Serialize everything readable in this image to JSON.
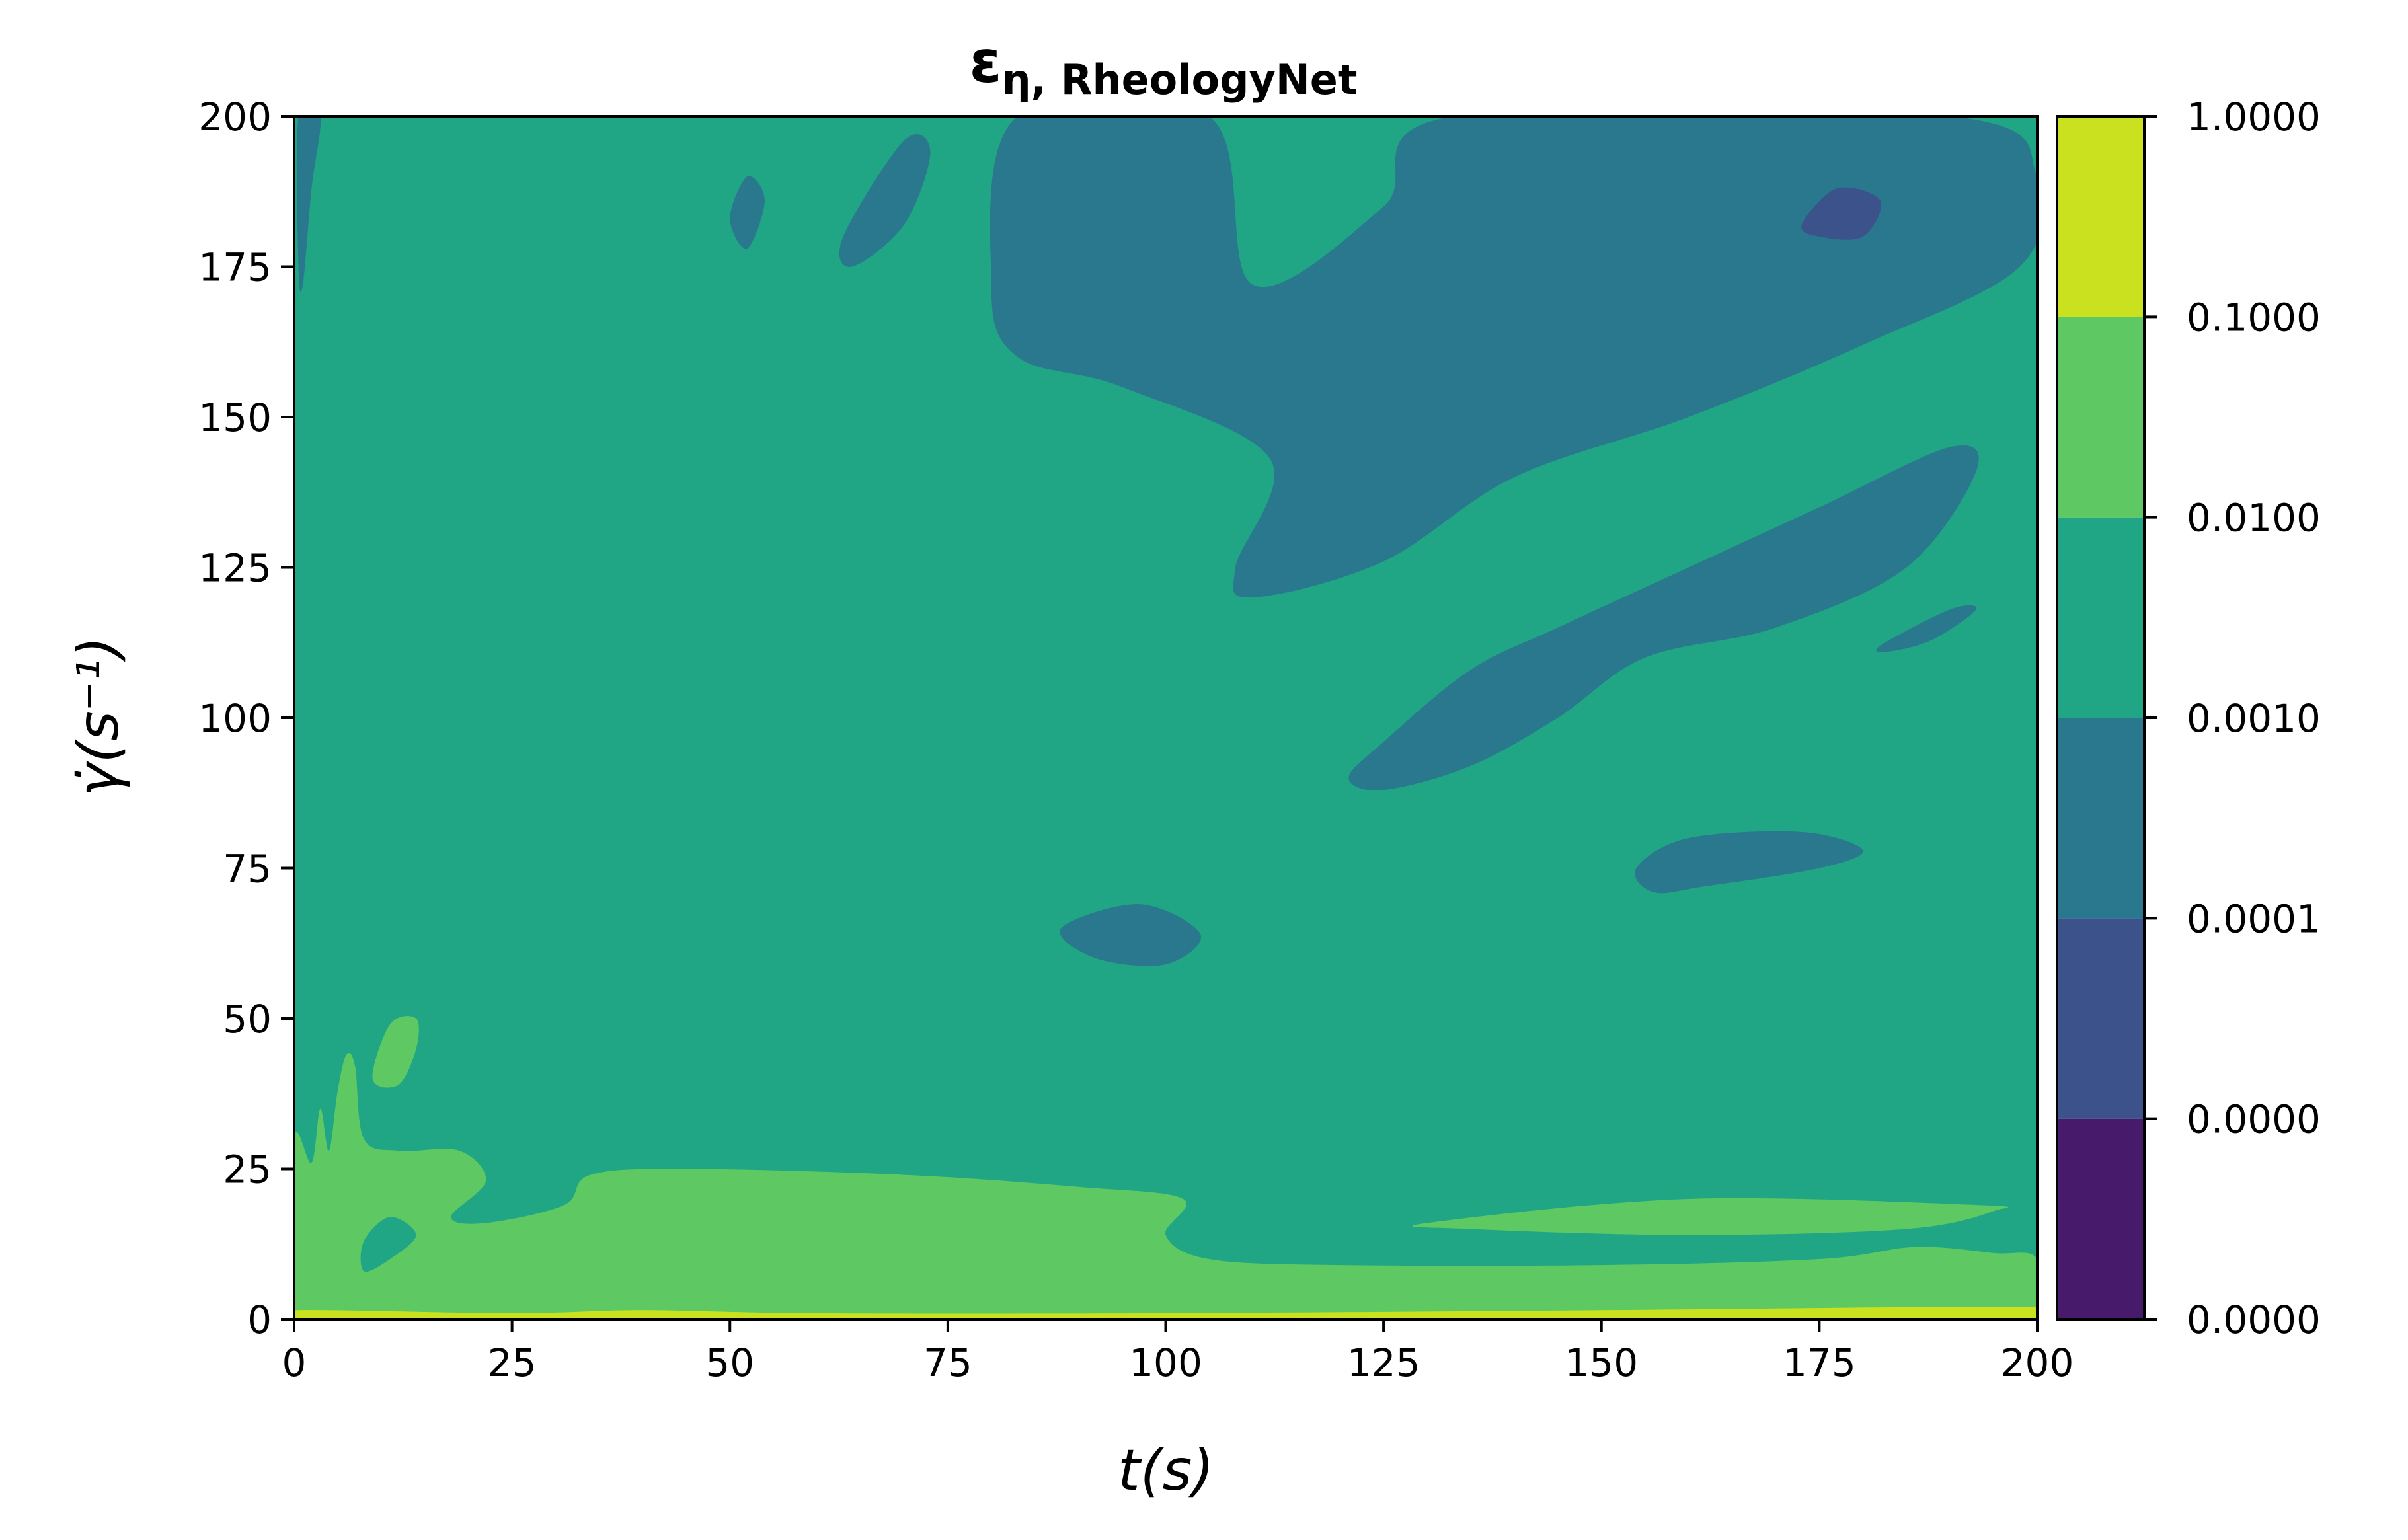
{
  "chart_data": {
    "type": "heatmap",
    "subtype": "filled-contour",
    "title": {
      "symbol": "ε",
      "subscript": "η, RheologyNet"
    },
    "xlabel": "t(s)",
    "ylabel": "γ̇(s⁻¹)",
    "xlim": [
      0,
      200
    ],
    "ylim": [
      0,
      200
    ],
    "xticks": [
      0,
      25,
      50,
      75,
      100,
      125,
      150,
      175,
      200
    ],
    "yticks": [
      0,
      25,
      50,
      75,
      100,
      125,
      150,
      175,
      200
    ],
    "colorbar": {
      "levels": [
        0,
        1,
        2,
        3,
        4,
        5,
        6
      ],
      "tick_labels": [
        "0.0000",
        "0.0000",
        "0.0001",
        "0.0010",
        "0.0100",
        "0.1000",
        "1.0000"
      ],
      "band_colors": [
        "#481a6c",
        "#3b528b",
        "#2a788e",
        "#21a685",
        "#5ec962",
        "#cae11f"
      ]
    },
    "background_level_color": "#21a685",
    "regions": [
      {
        "name": "low-error-band-top-right",
        "color": "#2a788e",
        "points": [
          [
            83,
            200
          ],
          [
            105,
            200
          ],
          [
            110,
            172
          ],
          [
            125,
            185
          ],
          [
            133,
            200
          ],
          [
            190,
            200
          ],
          [
            200,
            190
          ],
          [
            198,
            175
          ],
          [
            180,
            162
          ],
          [
            160,
            150
          ],
          [
            140,
            140
          ],
          [
            125,
            126
          ],
          [
            110,
            120
          ],
          [
            108,
            125
          ],
          [
            112,
            143
          ],
          [
            95,
            155
          ],
          [
            83,
            160
          ],
          [
            80,
            172
          ]
        ]
      },
      {
        "name": "low-error-band-diagonal",
        "color": "#2a788e",
        "points": [
          [
            125,
            96
          ],
          [
            135,
            108
          ],
          [
            145,
            115
          ],
          [
            160,
            125
          ],
          [
            175,
            135
          ],
          [
            190,
            145
          ],
          [
            193,
            141
          ],
          [
            185,
            125
          ],
          [
            170,
            115
          ],
          [
            155,
            110
          ],
          [
            145,
            100
          ],
          [
            135,
            92
          ],
          [
            125,
            88
          ],
          [
            121,
            90
          ]
        ]
      },
      {
        "name": "low-error-island-mid",
        "color": "#2a788e",
        "points": [
          [
            88,
            65
          ],
          [
            97,
            69
          ],
          [
            104,
            64
          ],
          [
            100,
            59
          ],
          [
            92,
            60
          ]
        ]
      },
      {
        "name": "low-error-island-right",
        "color": "#2a788e",
        "points": [
          [
            154,
            75
          ],
          [
            160,
            80
          ],
          [
            173,
            81
          ],
          [
            180,
            78
          ],
          [
            175,
            75
          ],
          [
            162,
            72
          ],
          [
            156,
            71
          ]
        ]
      },
      {
        "name": "low-error-island-small-right",
        "color": "#2a788e",
        "points": [
          [
            182,
            112
          ],
          [
            190,
            118
          ],
          [
            193,
            118
          ],
          [
            188,
            113
          ],
          [
            183,
            111
          ]
        ]
      },
      {
        "name": "low-error-island-top-1",
        "color": "#2a788e",
        "points": [
          [
            63,
            180
          ],
          [
            70,
            196
          ],
          [
            73,
            194
          ],
          [
            70,
            182
          ],
          [
            64,
            175
          ]
        ]
      },
      {
        "name": "low-error-island-top-2",
        "color": "#2a788e",
        "points": [
          [
            50,
            183
          ],
          [
            52,
            190
          ],
          [
            54,
            186
          ],
          [
            52,
            178
          ]
        ]
      },
      {
        "name": "low-error-sliver-left",
        "color": "#2a788e",
        "points": [
          [
            0.5,
            200
          ],
          [
            3,
            200
          ],
          [
            2,
            188
          ],
          [
            1,
            172
          ],
          [
            0.5,
            175
          ]
        ]
      },
      {
        "name": "lowest-error-spot",
        "color": "#3b528b",
        "points": [
          [
            173,
            182
          ],
          [
            177,
            188
          ],
          [
            182,
            186
          ],
          [
            180,
            180
          ],
          [
            175,
            180
          ]
        ]
      },
      {
        "name": "high-error-band-bottom",
        "color": "#5ec962",
        "points": [
          [
            0,
            0
          ],
          [
            200,
            0
          ],
          [
            200,
            10
          ],
          [
            195,
            11
          ],
          [
            186,
            12
          ],
          [
            175,
            10
          ],
          [
            150,
            9
          ],
          [
            120,
            9
          ],
          [
            105,
            10
          ],
          [
            100,
            14
          ],
          [
            102,
            20
          ],
          [
            90,
            22
          ],
          [
            70,
            24
          ],
          [
            45,
            25
          ],
          [
            34,
            24
          ],
          [
            31,
            19
          ],
          [
            22,
            16
          ],
          [
            18,
            17
          ],
          [
            22,
            23
          ],
          [
            19,
            28
          ],
          [
            12,
            28
          ],
          [
            8,
            30
          ],
          [
            7,
            42
          ],
          [
            6,
            44
          ],
          [
            5,
            38
          ],
          [
            4,
            28
          ],
          [
            3,
            35
          ],
          [
            2,
            26
          ],
          [
            0,
            30
          ]
        ]
      },
      {
        "name": "high-error-strip-right",
        "color": "#5ec962",
        "points": [
          [
            130,
            16
          ],
          [
            160,
            20
          ],
          [
            193,
            19
          ],
          [
            195,
            18
          ],
          [
            185,
            15
          ],
          [
            160,
            14
          ],
          [
            135,
            15
          ]
        ]
      },
      {
        "name": "high-error-island-left",
        "color": "#5ec962",
        "points": [
          [
            9,
            40
          ],
          [
            11,
            49
          ],
          [
            14,
            50
          ],
          [
            14,
            45
          ],
          [
            12,
            39
          ]
        ]
      },
      {
        "name": "background-hole-left",
        "color": "#21a685",
        "points": [
          [
            8,
            13
          ],
          [
            11,
            17
          ],
          [
            14,
            14
          ],
          [
            11,
            10
          ],
          [
            8,
            8
          ]
        ]
      },
      {
        "name": "highest-error-edge",
        "color": "#cae11f",
        "points": [
          [
            0,
            0
          ],
          [
            200,
            0
          ],
          [
            200,
            2
          ],
          [
            150,
            1.5
          ],
          [
            100,
            1
          ],
          [
            60,
            1
          ],
          [
            40,
            1.5
          ],
          [
            25,
            1
          ],
          [
            0,
            1.5
          ]
        ]
      }
    ]
  }
}
